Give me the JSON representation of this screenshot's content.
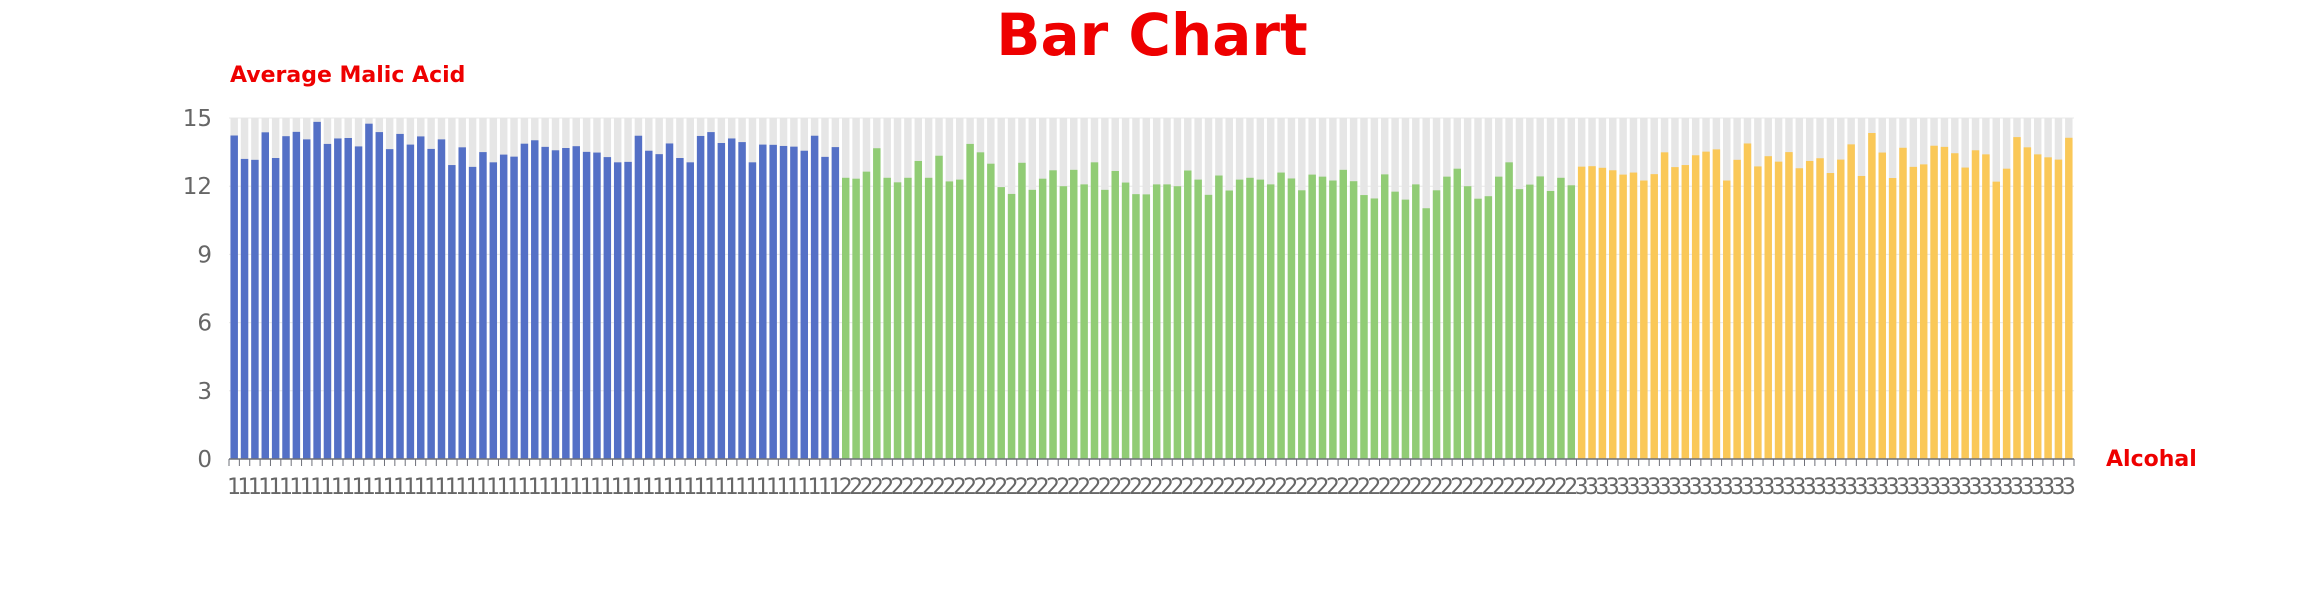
{
  "chart_data": {
    "type": "bar",
    "title": "Bar Chart",
    "ylabel": "Average Malic Acid",
    "xlabel": "Alcohal",
    "ylim": [
      0,
      15
    ],
    "yticks": [
      0,
      3,
      6,
      9,
      12,
      15
    ],
    "grid": true,
    "colors": {
      "class1": "#5470c6",
      "class2": "#91cc75",
      "class3": "#fac858",
      "background_bar": "#e6e6e6",
      "grid": "#e8e8e8",
      "axis": "#6e7079"
    },
    "categories": [
      "1",
      "1",
      "1",
      "1",
      "1",
      "1",
      "1",
      "1",
      "1",
      "1",
      "1",
      "1",
      "1",
      "1",
      "1",
      "1",
      "1",
      "1",
      "1",
      "1",
      "1",
      "1",
      "1",
      "1",
      "1",
      "1",
      "1",
      "1",
      "1",
      "1",
      "1",
      "1",
      "1",
      "1",
      "1",
      "1",
      "1",
      "1",
      "1",
      "1",
      "1",
      "1",
      "1",
      "1",
      "1",
      "1",
      "1",
      "1",
      "1",
      "1",
      "1",
      "1",
      "1",
      "1",
      "1",
      "1",
      "1",
      "1",
      "1",
      "2",
      "2",
      "2",
      "2",
      "2",
      "2",
      "2",
      "2",
      "2",
      "2",
      "2",
      "2",
      "2",
      "2",
      "2",
      "2",
      "2",
      "2",
      "2",
      "2",
      "2",
      "2",
      "2",
      "2",
      "2",
      "2",
      "2",
      "2",
      "2",
      "2",
      "2",
      "2",
      "2",
      "2",
      "2",
      "2",
      "2",
      "2",
      "2",
      "2",
      "2",
      "2",
      "2",
      "2",
      "2",
      "2",
      "2",
      "2",
      "2",
      "2",
      "2",
      "2",
      "2",
      "2",
      "2",
      "2",
      "2",
      "2",
      "2",
      "2",
      "2",
      "2",
      "2",
      "2",
      "2",
      "2",
      "2",
      "2",
      "2",
      "2",
      "2",
      "3",
      "3",
      "3",
      "3",
      "3",
      "3",
      "3",
      "3",
      "3",
      "3",
      "3",
      "3",
      "3",
      "3",
      "3",
      "3",
      "3",
      "3",
      "3",
      "3",
      "3",
      "3",
      "3",
      "3",
      "3",
      "3",
      "3",
      "3",
      "3",
      "3",
      "3",
      "3",
      "3",
      "3",
      "3",
      "3",
      "3",
      "3",
      "3",
      "3",
      "3",
      "3",
      "3",
      "3",
      "3",
      "3",
      "3",
      "3"
    ],
    "values": [
      14.23,
      13.2,
      13.16,
      14.37,
      13.24,
      14.2,
      14.39,
      14.06,
      14.83,
      13.86,
      14.1,
      14.12,
      13.75,
      14.75,
      14.38,
      13.63,
      14.3,
      13.83,
      14.19,
      13.64,
      14.06,
      12.93,
      13.71,
      12.85,
      13.5,
      13.05,
      13.39,
      13.3,
      13.87,
      14.02,
      13.73,
      13.58,
      13.68,
      13.76,
      13.51,
      13.48,
      13.28,
      13.05,
      13.07,
      14.22,
      13.56,
      13.41,
      13.88,
      13.24,
      13.05,
      14.21,
      14.38,
      13.9,
      14.1,
      13.94,
      13.05,
      13.83,
      13.82,
      13.77,
      13.74,
      13.56,
      14.22,
      13.29,
      13.72,
      12.37,
      12.33,
      12.64,
      13.67,
      12.37,
      12.17,
      12.37,
      13.11,
      12.37,
      13.34,
      12.21,
      12.29,
      13.86,
      13.49,
      12.99,
      11.96,
      11.66,
      13.03,
      11.84,
      12.33,
      12.7,
      12.0,
      12.72,
      12.08,
      13.05,
      11.84,
      12.67,
      12.16,
      11.65,
      11.64,
      12.08,
      12.08,
      12.0,
      12.69,
      12.29,
      11.62,
      12.47,
      11.81,
      12.29,
      12.37,
      12.29,
      12.08,
      12.6,
      12.34,
      11.82,
      12.51,
      12.42,
      12.25,
      12.72,
      12.22,
      11.61,
      11.46,
      12.52,
      11.76,
      11.41,
      12.08,
      11.03,
      11.82,
      12.42,
      12.77,
      12.0,
      11.45,
      11.56,
      12.42,
      13.05,
      11.87,
      12.07,
      12.43,
      11.79,
      12.37,
      12.04,
      12.86,
      12.88,
      12.81,
      12.7,
      12.51,
      12.6,
      12.25,
      12.53,
      13.49,
      12.84,
      12.93,
      13.36,
      13.52,
      13.62,
      12.25,
      13.16,
      13.88,
      12.87,
      13.32,
      13.08,
      13.5,
      12.79,
      13.11,
      13.23,
      12.58,
      13.17,
      13.84,
      12.45,
      14.34,
      13.48,
      12.36,
      13.69,
      12.85,
      12.96,
      13.78,
      13.73,
      13.45,
      12.82,
      13.58,
      13.4,
      12.2,
      12.77,
      14.16,
      13.71,
      13.4,
      13.27,
      13.17,
      14.13
    ]
  }
}
